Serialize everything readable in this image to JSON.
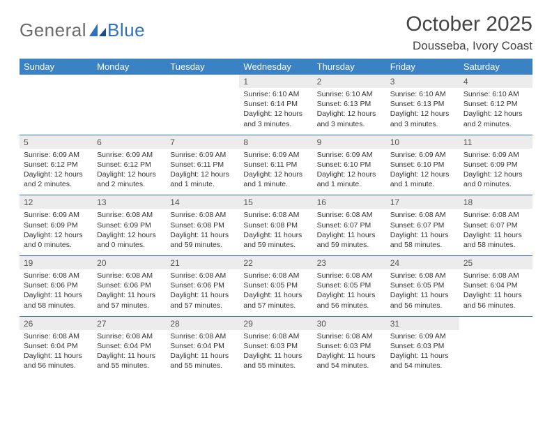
{
  "brand": {
    "text1": "General",
    "text2": "Blue"
  },
  "title": "October 2025",
  "location": "Dousseba, Ivory Coast",
  "colors": {
    "header_bg": "#3b82c4",
    "header_text": "#ffffff",
    "daynum_bg": "#ececec",
    "border": "#2f72b9",
    "logo_gray": "#6a6a6a",
    "logo_blue": "#2f72b9"
  },
  "weekdays": [
    "Sunday",
    "Monday",
    "Tuesday",
    "Wednesday",
    "Thursday",
    "Friday",
    "Saturday"
  ],
  "weeks": [
    [
      null,
      null,
      null,
      {
        "n": "1",
        "sr": "Sunrise: 6:10 AM",
        "ss": "Sunset: 6:14 PM",
        "dl": "Daylight: 12 hours and 3 minutes."
      },
      {
        "n": "2",
        "sr": "Sunrise: 6:10 AM",
        "ss": "Sunset: 6:13 PM",
        "dl": "Daylight: 12 hours and 3 minutes."
      },
      {
        "n": "3",
        "sr": "Sunrise: 6:10 AM",
        "ss": "Sunset: 6:13 PM",
        "dl": "Daylight: 12 hours and 3 minutes."
      },
      {
        "n": "4",
        "sr": "Sunrise: 6:10 AM",
        "ss": "Sunset: 6:12 PM",
        "dl": "Daylight: 12 hours and 2 minutes."
      }
    ],
    [
      {
        "n": "5",
        "sr": "Sunrise: 6:09 AM",
        "ss": "Sunset: 6:12 PM",
        "dl": "Daylight: 12 hours and 2 minutes."
      },
      {
        "n": "6",
        "sr": "Sunrise: 6:09 AM",
        "ss": "Sunset: 6:12 PM",
        "dl": "Daylight: 12 hours and 2 minutes."
      },
      {
        "n": "7",
        "sr": "Sunrise: 6:09 AM",
        "ss": "Sunset: 6:11 PM",
        "dl": "Daylight: 12 hours and 1 minute."
      },
      {
        "n": "8",
        "sr": "Sunrise: 6:09 AM",
        "ss": "Sunset: 6:11 PM",
        "dl": "Daylight: 12 hours and 1 minute."
      },
      {
        "n": "9",
        "sr": "Sunrise: 6:09 AM",
        "ss": "Sunset: 6:10 PM",
        "dl": "Daylight: 12 hours and 1 minute."
      },
      {
        "n": "10",
        "sr": "Sunrise: 6:09 AM",
        "ss": "Sunset: 6:10 PM",
        "dl": "Daylight: 12 hours and 1 minute."
      },
      {
        "n": "11",
        "sr": "Sunrise: 6:09 AM",
        "ss": "Sunset: 6:09 PM",
        "dl": "Daylight: 12 hours and 0 minutes."
      }
    ],
    [
      {
        "n": "12",
        "sr": "Sunrise: 6:09 AM",
        "ss": "Sunset: 6:09 PM",
        "dl": "Daylight: 12 hours and 0 minutes."
      },
      {
        "n": "13",
        "sr": "Sunrise: 6:08 AM",
        "ss": "Sunset: 6:09 PM",
        "dl": "Daylight: 12 hours and 0 minutes."
      },
      {
        "n": "14",
        "sr": "Sunrise: 6:08 AM",
        "ss": "Sunset: 6:08 PM",
        "dl": "Daylight: 11 hours and 59 minutes."
      },
      {
        "n": "15",
        "sr": "Sunrise: 6:08 AM",
        "ss": "Sunset: 6:08 PM",
        "dl": "Daylight: 11 hours and 59 minutes."
      },
      {
        "n": "16",
        "sr": "Sunrise: 6:08 AM",
        "ss": "Sunset: 6:07 PM",
        "dl": "Daylight: 11 hours and 59 minutes."
      },
      {
        "n": "17",
        "sr": "Sunrise: 6:08 AM",
        "ss": "Sunset: 6:07 PM",
        "dl": "Daylight: 11 hours and 58 minutes."
      },
      {
        "n": "18",
        "sr": "Sunrise: 6:08 AM",
        "ss": "Sunset: 6:07 PM",
        "dl": "Daylight: 11 hours and 58 minutes."
      }
    ],
    [
      {
        "n": "19",
        "sr": "Sunrise: 6:08 AM",
        "ss": "Sunset: 6:06 PM",
        "dl": "Daylight: 11 hours and 58 minutes."
      },
      {
        "n": "20",
        "sr": "Sunrise: 6:08 AM",
        "ss": "Sunset: 6:06 PM",
        "dl": "Daylight: 11 hours and 57 minutes."
      },
      {
        "n": "21",
        "sr": "Sunrise: 6:08 AM",
        "ss": "Sunset: 6:06 PM",
        "dl": "Daylight: 11 hours and 57 minutes."
      },
      {
        "n": "22",
        "sr": "Sunrise: 6:08 AM",
        "ss": "Sunset: 6:05 PM",
        "dl": "Daylight: 11 hours and 57 minutes."
      },
      {
        "n": "23",
        "sr": "Sunrise: 6:08 AM",
        "ss": "Sunset: 6:05 PM",
        "dl": "Daylight: 11 hours and 56 minutes."
      },
      {
        "n": "24",
        "sr": "Sunrise: 6:08 AM",
        "ss": "Sunset: 6:05 PM",
        "dl": "Daylight: 11 hours and 56 minutes."
      },
      {
        "n": "25",
        "sr": "Sunrise: 6:08 AM",
        "ss": "Sunset: 6:04 PM",
        "dl": "Daylight: 11 hours and 56 minutes."
      }
    ],
    [
      {
        "n": "26",
        "sr": "Sunrise: 6:08 AM",
        "ss": "Sunset: 6:04 PM",
        "dl": "Daylight: 11 hours and 56 minutes."
      },
      {
        "n": "27",
        "sr": "Sunrise: 6:08 AM",
        "ss": "Sunset: 6:04 PM",
        "dl": "Daylight: 11 hours and 55 minutes."
      },
      {
        "n": "28",
        "sr": "Sunrise: 6:08 AM",
        "ss": "Sunset: 6:04 PM",
        "dl": "Daylight: 11 hours and 55 minutes."
      },
      {
        "n": "29",
        "sr": "Sunrise: 6:08 AM",
        "ss": "Sunset: 6:03 PM",
        "dl": "Daylight: 11 hours and 55 minutes."
      },
      {
        "n": "30",
        "sr": "Sunrise: 6:08 AM",
        "ss": "Sunset: 6:03 PM",
        "dl": "Daylight: 11 hours and 54 minutes."
      },
      {
        "n": "31",
        "sr": "Sunrise: 6:09 AM",
        "ss": "Sunset: 6:03 PM",
        "dl": "Daylight: 11 hours and 54 minutes."
      },
      null
    ]
  ]
}
